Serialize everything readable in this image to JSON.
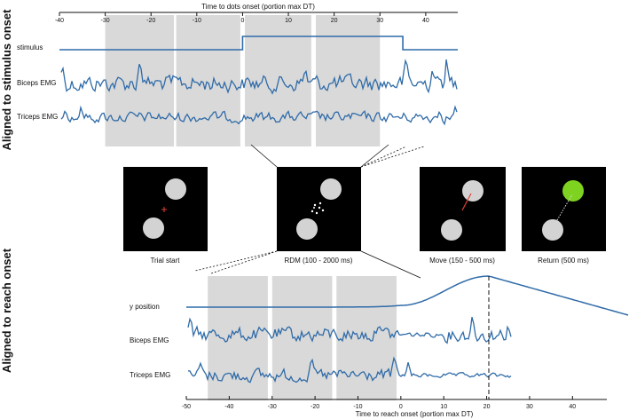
{
  "side_labels": {
    "top": "Aligned to stimulus onset",
    "bottom": "Aligned to reach onset"
  },
  "colors": {
    "trace": "#2f6ba8",
    "shade": "#d9d9d9",
    "screen_bg": "#000000",
    "target_circle": "#d3d3d3",
    "target_active": "#7ed321",
    "hand_path": "#e0403a"
  },
  "top_panel": {
    "xlabel": "Time to dots onset (portion max DT)",
    "ticks": [
      "-40",
      "-30",
      "-20",
      "-10",
      "0",
      "10",
      "20",
      "30",
      "40"
    ],
    "tick_values": [
      -40,
      -30,
      -20,
      -10,
      0,
      10,
      20,
      30,
      40
    ],
    "xlim": [
      -40,
      47
    ],
    "shaded_windows": [
      [
        -30,
        -15
      ],
      [
        -14.5,
        -0.5
      ],
      [
        0.5,
        15
      ],
      [
        16,
        30
      ]
    ],
    "stimulus_step": [
      0,
      35
    ],
    "rows": [
      {
        "key": "stimulus",
        "label": "stimulus"
      },
      {
        "key": "biceps",
        "label": "Biceps EMG"
      },
      {
        "key": "triceps",
        "label": "Triceps EMG"
      }
    ]
  },
  "bottom_panel": {
    "xlabel": "Time to reach onset (portion max DT)",
    "ticks": [
      "-50",
      "-40",
      "-30",
      "-20",
      "-10",
      "0",
      "10",
      "20",
      "30",
      "40"
    ],
    "tick_values": [
      -50,
      -40,
      -30,
      -20,
      -10,
      0,
      10,
      20,
      30,
      40
    ],
    "xlim": [
      -50,
      48
    ],
    "shaded_windows": [
      [
        -45,
        -31
      ],
      [
        -30,
        -16
      ],
      [
        -15,
        -1
      ]
    ],
    "reach_peak": 20.5,
    "rows": [
      {
        "key": "ypos",
        "label": "y position"
      },
      {
        "key": "biceps",
        "label": "Biceps EMG"
      },
      {
        "key": "triceps",
        "label": "Triceps EMG"
      }
    ]
  },
  "task_screens": [
    {
      "key": "trial-start",
      "label": "Trial start"
    },
    {
      "key": "rdm",
      "label": "RDM (100 - 2000 ms)"
    },
    {
      "key": "move",
      "label": "Move (150 - 500 ms)"
    },
    {
      "key": "return",
      "label": "Return (500 ms)"
    }
  ]
}
